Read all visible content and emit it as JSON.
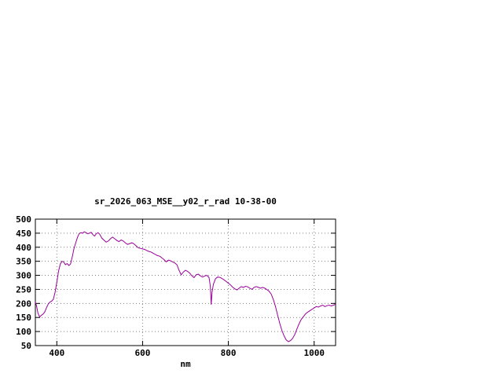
{
  "chart": {
    "title": "sr_2026_063_MSE__y02_r_rad 10-38-00",
    "xlabel": "nm"
  },
  "chart_data": {
    "type": "line",
    "title": "sr_2026_063_MSE__y02_r_rad 10-38-00",
    "xlabel": "nm",
    "ylabel": "",
    "xlim": [
      350,
      1050
    ],
    "ylim": [
      50,
      500
    ],
    "xticks": [
      400,
      600,
      800,
      1000
    ],
    "yticks": [
      50,
      100,
      150,
      200,
      250,
      300,
      350,
      400,
      450,
      500
    ],
    "grid": true,
    "legend": "none",
    "line_color": "#990099",
    "series": [
      {
        "name": "sr_2026_063_MSE__y02_r_rad",
        "points": [
          [
            350,
            205
          ],
          [
            353,
            190
          ],
          [
            356,
            165
          ],
          [
            360,
            152
          ],
          [
            364,
            158
          ],
          [
            368,
            162
          ],
          [
            372,
            170
          ],
          [
            376,
            185
          ],
          [
            380,
            198
          ],
          [
            384,
            205
          ],
          [
            388,
            208
          ],
          [
            392,
            215
          ],
          [
            396,
            240
          ],
          [
            400,
            275
          ],
          [
            404,
            315
          ],
          [
            408,
            340
          ],
          [
            412,
            350
          ],
          [
            416,
            348
          ],
          [
            420,
            338
          ],
          [
            424,
            342
          ],
          [
            428,
            335
          ],
          [
            432,
            340
          ],
          [
            436,
            365
          ],
          [
            440,
            395
          ],
          [
            444,
            415
          ],
          [
            448,
            435
          ],
          [
            452,
            448
          ],
          [
            456,
            452
          ],
          [
            460,
            450
          ],
          [
            464,
            455
          ],
          [
            468,
            452
          ],
          [
            472,
            448
          ],
          [
            476,
            450
          ],
          [
            480,
            453
          ],
          [
            484,
            445
          ],
          [
            488,
            440
          ],
          [
            492,
            448
          ],
          [
            496,
            452
          ],
          [
            500,
            446
          ],
          [
            505,
            432
          ],
          [
            510,
            425
          ],
          [
            515,
            418
          ],
          [
            520,
            422
          ],
          [
            525,
            430
          ],
          [
            530,
            436
          ],
          [
            535,
            430
          ],
          [
            540,
            424
          ],
          [
            545,
            420
          ],
          [
            550,
            426
          ],
          [
            555,
            422
          ],
          [
            560,
            415
          ],
          [
            565,
            410
          ],
          [
            570,
            413
          ],
          [
            575,
            416
          ],
          [
            580,
            412
          ],
          [
            585,
            405
          ],
          [
            590,
            398
          ],
          [
            595,
            396
          ],
          [
            600,
            394
          ],
          [
            605,
            392
          ],
          [
            610,
            388
          ],
          [
            615,
            385
          ],
          [
            620,
            383
          ],
          [
            625,
            378
          ],
          [
            630,
            374
          ],
          [
            635,
            370
          ],
          [
            640,
            368
          ],
          [
            645,
            362
          ],
          [
            650,
            356
          ],
          [
            655,
            348
          ],
          [
            660,
            354
          ],
          [
            665,
            352
          ],
          [
            670,
            348
          ],
          [
            675,
            344
          ],
          [
            680,
            338
          ],
          [
            685,
            318
          ],
          [
            690,
            302
          ],
          [
            695,
            312
          ],
          [
            700,
            318
          ],
          [
            705,
            314
          ],
          [
            710,
            308
          ],
          [
            715,
            298
          ],
          [
            720,
            292
          ],
          [
            725,
            302
          ],
          [
            730,
            304
          ],
          [
            735,
            298
          ],
          [
            740,
            294
          ],
          [
            745,
            298
          ],
          [
            750,
            300
          ],
          [
            755,
            292
          ],
          [
            758,
            260
          ],
          [
            760,
            196
          ],
          [
            762,
            240
          ],
          [
            765,
            268
          ],
          [
            770,
            288
          ],
          [
            775,
            294
          ],
          [
            780,
            293
          ],
          [
            785,
            289
          ],
          [
            790,
            284
          ],
          [
            795,
            278
          ],
          [
            800,
            272
          ],
          [
            805,
            266
          ],
          [
            810,
            258
          ],
          [
            815,
            252
          ],
          [
            820,
            248
          ],
          [
            825,
            254
          ],
          [
            830,
            260
          ],
          [
            835,
            257
          ],
          [
            840,
            261
          ],
          [
            845,
            259
          ],
          [
            850,
            254
          ],
          [
            855,
            250
          ],
          [
            860,
            257
          ],
          [
            865,
            260
          ],
          [
            870,
            257
          ],
          [
            875,
            254
          ],
          [
            880,
            257
          ],
          [
            885,
            254
          ],
          [
            890,
            249
          ],
          [
            895,
            243
          ],
          [
            900,
            233
          ],
          [
            905,
            213
          ],
          [
            910,
            188
          ],
          [
            915,
            158
          ],
          [
            920,
            128
          ],
          [
            925,
            103
          ],
          [
            930,
            84
          ],
          [
            935,
            70
          ],
          [
            940,
            64
          ],
          [
            945,
            68
          ],
          [
            950,
            76
          ],
          [
            955,
            90
          ],
          [
            960,
            110
          ],
          [
            965,
            128
          ],
          [
            970,
            143
          ],
          [
            975,
            153
          ],
          [
            980,
            163
          ],
          [
            985,
            169
          ],
          [
            990,
            174
          ],
          [
            995,
            179
          ],
          [
            1000,
            184
          ],
          [
            1005,
            189
          ],
          [
            1010,
            187
          ],
          [
            1015,
            191
          ],
          [
            1020,
            194
          ],
          [
            1025,
            189
          ],
          [
            1030,
            192
          ],
          [
            1035,
            194
          ],
          [
            1040,
            191
          ],
          [
            1045,
            194
          ],
          [
            1050,
            197
          ]
        ]
      }
    ]
  }
}
